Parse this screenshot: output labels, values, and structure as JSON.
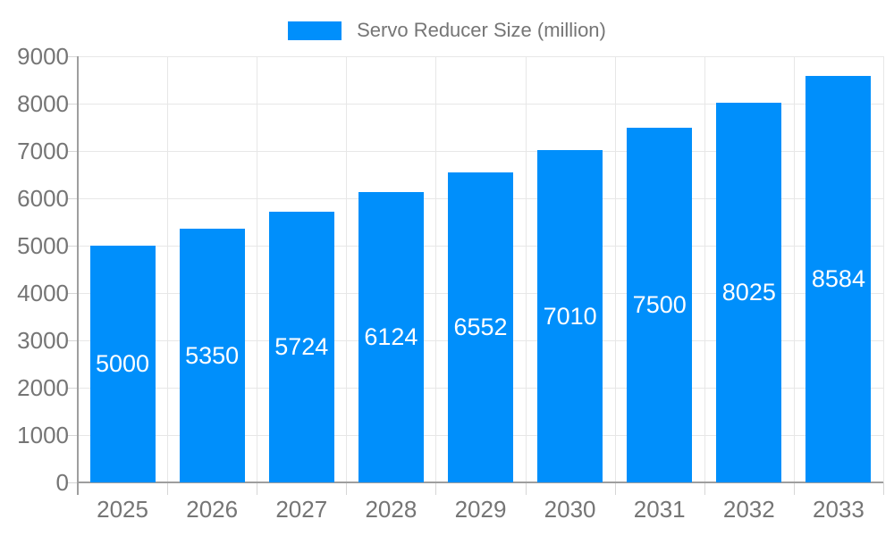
{
  "chart_data": {
    "type": "bar",
    "title": "Servo Reducer Size (million)",
    "legend": [
      "Servo Reducer Size (million)"
    ],
    "legend_position": "top",
    "categories": [
      "2025",
      "2026",
      "2027",
      "2028",
      "2029",
      "2030",
      "2031",
      "2032",
      "2033"
    ],
    "values": [
      5000,
      5350,
      5724,
      6124,
      6552,
      7010,
      7500,
      8025,
      8584
    ],
    "xlabel": "",
    "ylabel": "",
    "ylim": [
      0,
      9000
    ],
    "ytick_step": 1000,
    "yticks": [
      0,
      1000,
      2000,
      3000,
      4000,
      5000,
      6000,
      7000,
      8000,
      9000
    ],
    "grid": true,
    "value_labels_inside_bars": true,
    "colors": {
      "bar": "#008ffb",
      "value_label": "#ffffff",
      "axis_text": "#757575",
      "grid_line": "#e7e7e7",
      "axis_line": "#9e9e9e",
      "tick": "#d6d6d6",
      "background": "#ffffff"
    }
  }
}
